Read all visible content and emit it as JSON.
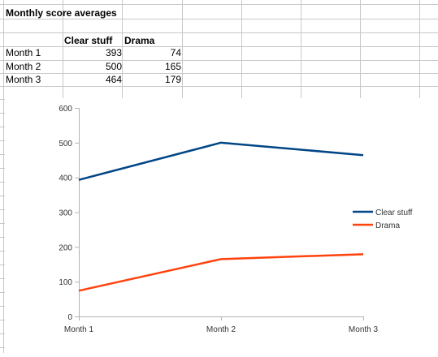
{
  "sheet": {
    "title": "Monthly score averages",
    "header": {
      "col_a": "Clear stuff",
      "col_b": "Drama"
    },
    "rows": [
      {
        "label": "Month 1",
        "a": "393",
        "b": "74"
      },
      {
        "label": "Month 2",
        "a": "500",
        "b": "165"
      },
      {
        "label": "Month 3",
        "a": "464",
        "b": "179"
      }
    ]
  },
  "colors": {
    "grid": "#c8c8c8",
    "series_1": "#004586",
    "series_2": "#ff420e",
    "axis": "#b3b3b3"
  },
  "chart_data": {
    "type": "line",
    "categories": [
      "Month 1",
      "Month 2",
      "Month 3"
    ],
    "series": [
      {
        "name": "Clear stuff",
        "values": [
          393,
          500,
          464
        ]
      },
      {
        "name": "Drama",
        "values": [
          74,
          165,
          179
        ]
      }
    ],
    "ylim": [
      0,
      600
    ],
    "yticks": [
      "0",
      "100",
      "200",
      "300",
      "400",
      "500",
      "600"
    ],
    "grid": false,
    "legend": "right"
  }
}
